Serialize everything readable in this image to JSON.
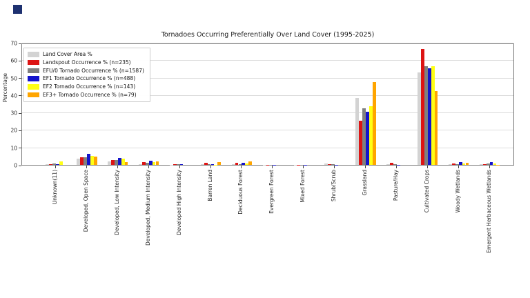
{
  "decoration": {
    "corner_square_color": "#1e3170"
  },
  "chart_data": {
    "type": "bar",
    "title": "Tornadoes Occurring Preferentially Over Land Cover (1995-2025)",
    "xlabel": "",
    "ylabel": "Percentage",
    "ylim": [
      0,
      70
    ],
    "yticks": [
      0,
      10,
      20,
      30,
      40,
      50,
      60,
      70
    ],
    "grid": true,
    "legend_position": "upper-left",
    "categories": [
      "Unknown(11)",
      "Developed, Open Space",
      "Developed, Low Intensity",
      "Developed, Medium Intensity",
      "Developed High Intensity",
      "Barren Land",
      "Deciduous Forest",
      "Evergreen Forest",
      "Mixed Forest",
      "Shrub/Scrub",
      "Grassland",
      "Pasture/Hay",
      "Cultivated Crops",
      "Woody Wetlands",
      "Emergent Herbaceous Wetlands"
    ],
    "series": [
      {
        "name": "Land Cover Area %",
        "color": "#d3d3d3",
        "values": [
          0.3,
          3.5,
          2.0,
          0.5,
          0.2,
          0.3,
          0.5,
          0.2,
          0.1,
          0.9,
          38.5,
          0.3,
          53.0,
          0.4,
          0.3
        ]
      },
      {
        "name": "Landspout Occurrence % (n=235)",
        "color": "#dd1414",
        "values": [
          0.3,
          4.4,
          2.6,
          1.5,
          0.4,
          1.2,
          1.1,
          0.2,
          0.1,
          0.4,
          25.5,
          1.1,
          66.5,
          0.9,
          0.4
        ]
      },
      {
        "name": "EFU/0 Tornado Occurrence % (n=1587)",
        "color": "#808080",
        "values": [
          0.9,
          4.2,
          2.9,
          1.0,
          0.3,
          0.3,
          0.5,
          0.2,
          0.1,
          0.3,
          32.5,
          0.3,
          56.5,
          0.4,
          0.9
        ]
      },
      {
        "name": "EF1 Tornado Occurrence % (n=488)",
        "color": "#1414cc",
        "values": [
          0.4,
          6.2,
          4.0,
          2.5,
          0.3,
          0.3,
          1.3,
          0.2,
          0.1,
          0.2,
          30.5,
          0.2,
          55.5,
          1.6,
          1.4
        ]
      },
      {
        "name": "EF2 Tornado Occurrence % (n=143)",
        "color": "#ffff14",
        "values": [
          2.1,
          5.1,
          3.5,
          1.6,
          0.0,
          0.2,
          0.8,
          0.0,
          0.0,
          0.0,
          33.5,
          0.0,
          56.5,
          0.9,
          0.8
        ]
      },
      {
        "name": "EF3+ Tornado Occurrence % (n=79)",
        "color": "#ffa500",
        "values": [
          0.0,
          4.6,
          1.4,
          1.8,
          0.0,
          1.5,
          1.9,
          0.0,
          0.0,
          0.0,
          47.5,
          0.0,
          42.5,
          1.3,
          0.2
        ]
      }
    ]
  }
}
